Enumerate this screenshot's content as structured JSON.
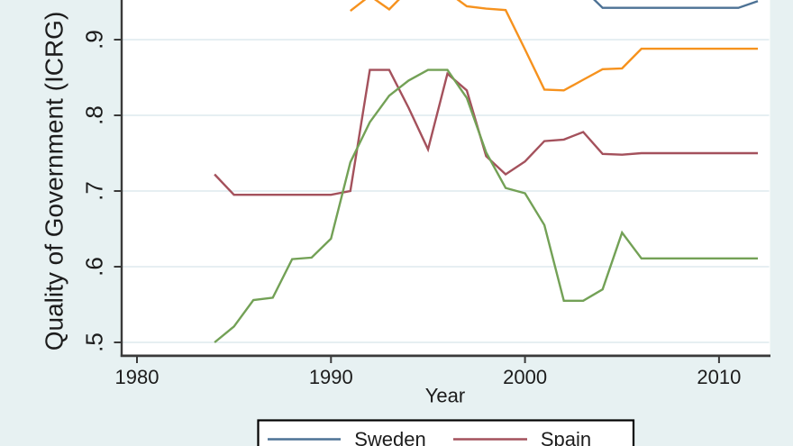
{
  "chart_data": {
    "type": "line",
    "title": "",
    "xlabel": "Year",
    "ylabel": "Quality of Government (ICRG)",
    "x_tick_labels": [
      "1980",
      "1990",
      "2000",
      "2010"
    ],
    "x_tick_values": [
      1980,
      1990,
      2000,
      2010
    ],
    "y_tick_labels": [
      ".5",
      ".6",
      ".7",
      ".8",
      ".9"
    ],
    "y_tick_values": [
      0.5,
      0.6,
      0.7,
      0.8,
      0.9
    ],
    "x_range_visible": [
      1979.2,
      2012.6
    ],
    "y_range_visible": [
      0.483,
      0.955
    ],
    "grid": true,
    "legend_position": "bottom",
    "cropped_edges": "plot area clipped at top of image; legend clipped at bottom of image",
    "series": [
      {
        "key": "sweden",
        "name": "Sweden",
        "color": "#4d7295",
        "years": [
          2003,
          2004,
          2005,
          2006,
          2007,
          2008,
          2009,
          2010,
          2011,
          2012
        ],
        "values": [
          0.967,
          0.942,
          0.942,
          0.942,
          0.942,
          0.942,
          0.942,
          0.942,
          0.942,
          0.951
        ]
      },
      {
        "key": "spain",
        "name": "Spain",
        "color": "#a4515c",
        "years": [
          1984,
          1985,
          1986,
          1987,
          1988,
          1989,
          1990,
          1991,
          1992,
          1993,
          1994,
          1995,
          1996,
          1997,
          1998,
          1999,
          2000,
          2001,
          2002,
          2003,
          2004,
          2005,
          2006,
          2007,
          2008,
          2009,
          2010,
          2011,
          2012
        ],
        "values": [
          0.722,
          0.695,
          0.695,
          0.695,
          0.695,
          0.695,
          0.695,
          0.7,
          0.86,
          0.86,
          0.81,
          0.755,
          0.855,
          0.833,
          0.746,
          0.722,
          0.739,
          0.766,
          0.768,
          0.778,
          0.749,
          0.748,
          0.75,
          0.75,
          0.75,
          0.75,
          0.75,
          0.75,
          0.75
        ]
      },
      {
        "key": "orange-unlabeled",
        "name": null,
        "color": "#f6921e",
        "years": [
          1991,
          1992,
          1993,
          1994,
          1995,
          1996,
          1997,
          1998,
          1999,
          2000,
          2001,
          2002,
          2003,
          2004,
          2005,
          2006,
          2007,
          2008,
          2009,
          2010,
          2011,
          2012
        ],
        "values": [
          0.938,
          0.958,
          0.94,
          0.966,
          0.966,
          0.963,
          0.944,
          0.941,
          0.939,
          0.887,
          0.834,
          0.833,
          0.847,
          0.861,
          0.862,
          0.888,
          0.888,
          0.888,
          0.888,
          0.888,
          0.888,
          0.888
        ]
      },
      {
        "key": "green-unlabeled",
        "name": null,
        "color": "#73a156",
        "years": [
          1984,
          1985,
          1986,
          1987,
          1988,
          1989,
          1990,
          1991,
          1992,
          1993,
          1994,
          1995,
          1996,
          1997,
          1998,
          1999,
          2000,
          2001,
          2002,
          2003,
          2004,
          2005,
          2006,
          2007,
          2008,
          2009,
          2010,
          2011,
          2012
        ],
        "values": [
          0.5,
          0.521,
          0.556,
          0.559,
          0.61,
          0.612,
          0.637,
          0.738,
          0.791,
          0.826,
          0.846,
          0.86,
          0.86,
          0.823,
          0.751,
          0.704,
          0.697,
          0.655,
          0.555,
          0.555,
          0.57,
          0.645,
          0.611,
          0.611,
          0.611,
          0.611,
          0.611,
          0.611,
          0.611
        ]
      }
    ],
    "legend_entries": [
      {
        "label": "Sweden",
        "series_index": 0
      },
      {
        "label": "Spain",
        "series_index": 1
      }
    ]
  },
  "colors": {
    "background": "#e7f1f2",
    "plot_background": "#ffffff",
    "gridline": "#e2edf0",
    "axis": "#3a3a3a",
    "text": "#1c1c1c",
    "legend_background": "#ffffff",
    "legend_border": "#000000"
  }
}
